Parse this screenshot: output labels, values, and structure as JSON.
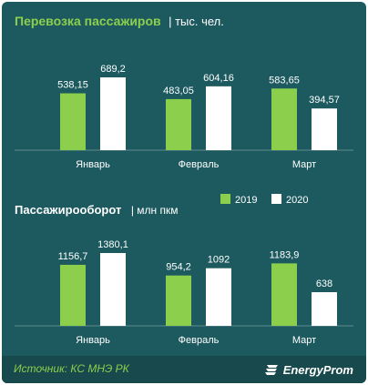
{
  "colors": {
    "background": "#1d5a5f",
    "footer": "#17494d",
    "green": "#8ccf4d",
    "white": "#ffffff",
    "title_green": "#8ccf4d"
  },
  "legend": [
    {
      "label": "2019",
      "color": "#8ccf4d"
    },
    {
      "label": "2020",
      "color": "#ffffff"
    }
  ],
  "chart_data": [
    {
      "type": "bar",
      "title": "Перевозка пассажиров",
      "unit": "| тыс. чел.",
      "categories": [
        "Январь",
        "Февраль",
        "Март"
      ],
      "series": [
        {
          "name": "2019",
          "values": [
            538.15,
            483.05,
            583.65
          ],
          "labels": [
            "538,15",
            "483,05",
            "583,65"
          ]
        },
        {
          "name": "2020",
          "values": [
            689.2,
            604.16,
            394.57
          ],
          "labels": [
            "689,2",
            "604,16",
            "394,57"
          ]
        }
      ]
    },
    {
      "type": "bar",
      "title": "Пассажирооборот",
      "unit": "| млн пкм",
      "categories": [
        "Январь",
        "Февраль",
        "Март"
      ],
      "series": [
        {
          "name": "2019",
          "values": [
            1156.7,
            954.2,
            1183.9
          ],
          "labels": [
            "1156,7",
            "954,2",
            "1183,9"
          ]
        },
        {
          "name": "2020",
          "values": [
            1380.1,
            1092,
            638
          ],
          "labels": [
            "1380,1",
            "1092",
            "638"
          ]
        }
      ]
    }
  ],
  "footer": {
    "source": "Источник: КС МНЭ РК",
    "brand": "EnergyProm",
    "brand_icon": "energyprom-logo-icon"
  }
}
